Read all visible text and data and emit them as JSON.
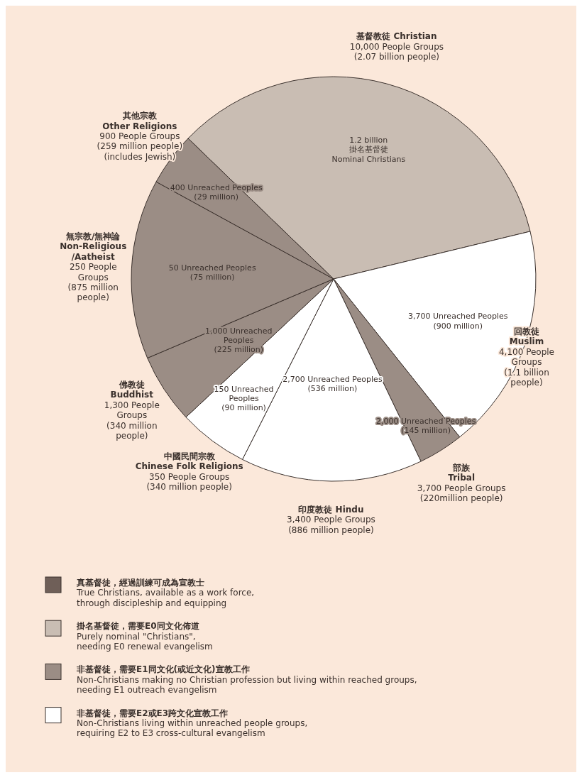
{
  "chart_data": {
    "type": "pie",
    "categories": [
      "基督教徒 Christian",
      "回教徒\nMuslim",
      "部族\nTribal",
      "印度教徒 Hindu",
      "中國民間宗教\nChinese Folk Religions",
      "佛教徒\nBuddhist",
      "無宗教/無神論\nNon-Religious\n/Aatheist",
      "其他宗教\nOther Religions"
    ],
    "values": [
      34.0,
      18.06,
      3.61,
      14.55,
      5.58,
      5.58,
      14.37,
      4.25
    ],
    "colors": [
      "#c9bdb3",
      "#ffffff",
      "#9b8d85",
      "#ffffff",
      "#ffffff",
      "#9b8d85",
      "#9b8d85",
      "#9b8d85"
    ],
    "annotations": [
      {
        "text": "10,000 People Groups\n(2.07 billion people)",
        "x": "基督教徒 Christian"
      },
      {
        "text": "4,100 People\nGroups\n(1.1 billion\npeople)",
        "x": "回教徒\nMuslim"
      },
      {
        "text": "3,700 People Groups\n(220million people)",
        "x": "部族\nTribal"
      },
      {
        "text": "3,400 People Groups\n(886 million people)",
        "x": "印度教徒 Hindu"
      },
      {
        "text": "350 People Groups\n(340 million people)",
        "x": "中國民間宗教\nChinese Folk Religions"
      },
      {
        "text": "1,300 People\nGroups\n(340 million\npeople)",
        "x": "佛教徒\nBuddhist"
      },
      {
        "text": "250 People\nGroups\n(875 million\npeople)",
        "x": "無宗教/無神論\nNon-Religious\n/Aatheist"
      },
      {
        "text": "900 People Groups\n(259 million people)\n(includes Jewish)",
        "x": "其他宗教\nOther Religions"
      },
      {
        "text": "1.2 billion\n掛名基督徒\nNominal Christians",
        "x": "基督教徒 Christian"
      },
      {
        "text": "3,700 Unreached Peoples\n(900 million)",
        "x": "回教徒\nMuslim"
      },
      {
        "text": "2,000 Unreached Peoples\n(145 million)",
        "x": "部族\nTribal"
      },
      {
        "text": "2,700 Unreached Peoples\n(536 million)",
        "x": "印度教徒 Hindu"
      },
      {
        "text": "150 Unreached\nPeoples\n(90 million)",
        "x": "中國民間宗教\nChinese Folk Religions"
      },
      {
        "text": "1,000 Unreached\nPeoples\n(225 million)",
        "x": "佛教徒\nBuddhist"
      },
      {
        "text": "50 Unreached Peoples\n(75 million)",
        "x": "無宗教/無神論\nNon-Religious\n/Aatheist"
      },
      {
        "text": "400 Unreached Peoples\n(29 million)",
        "x": "其他宗教\nOther Religions"
      },
      "真基督徒，經過訓練可成為宣教士\nTrue Christians, available as a work force,\nthrough discipleship and equipping",
      "掛名基督徒，需要E0同文化佈道\nPurely nominal \"Christians\",\nneeding E0 renewal evangelism",
      "非基督徒，需要E1同文化(或近文化)宣教工作\nNon-Christians making no Christian profession but living within reached groups,\nneeding E1 outreach evangelism",
      "非基督徒，需要E2或E3跨文化宣教工作\nNon-Christians living within unreached people groups,\nrequiring E2 to E3 cross-cultural evangelism"
    ]
  }
}
